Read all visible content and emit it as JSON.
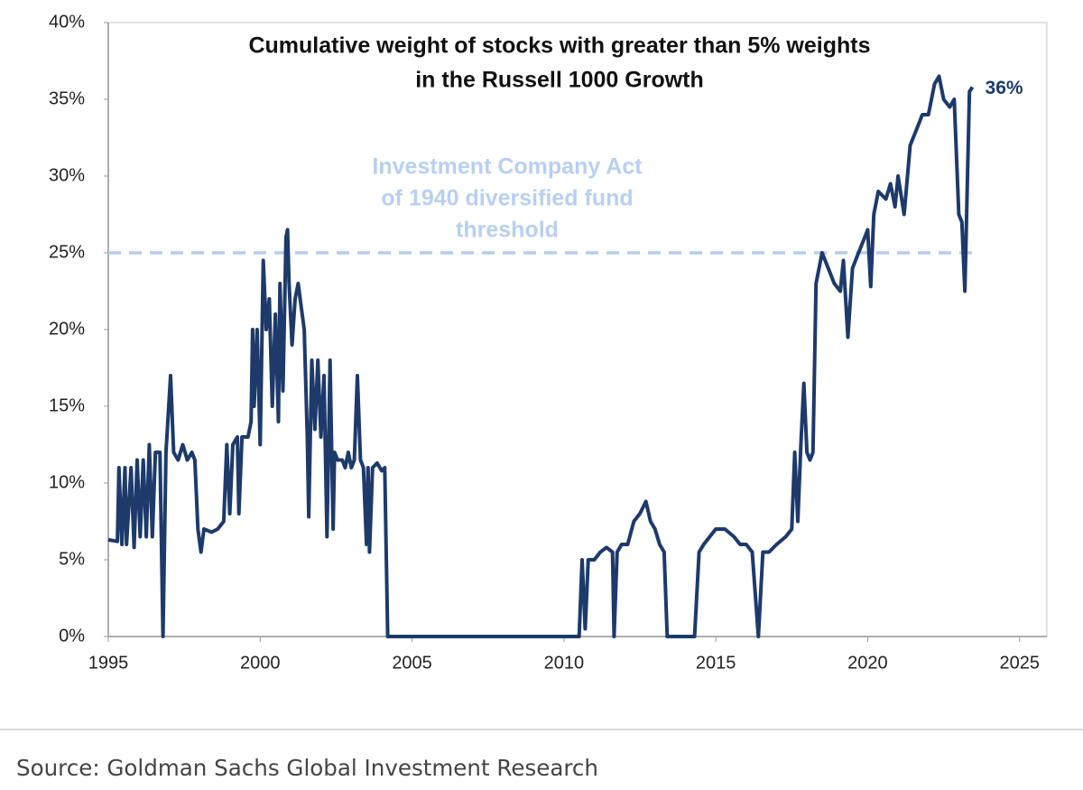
{
  "chart_data": {
    "type": "line",
    "title": [
      "Cumulative weight of stocks with greater than 5% weights",
      "in the Russell 1000 Growth"
    ],
    "x": [
      1995.0,
      1995.3,
      1995.35,
      1995.45,
      1995.55,
      1995.6,
      1995.75,
      1995.85,
      1995.95,
      1996.05,
      1996.15,
      1996.25,
      1996.35,
      1996.45,
      1996.55,
      1996.7,
      1996.8,
      1996.9,
      1997.05,
      1997.15,
      1997.3,
      1997.45,
      1997.6,
      1997.75,
      1997.85,
      1997.95,
      1998.05,
      1998.15,
      1998.4,
      1998.6,
      1998.8,
      1998.9,
      1999.0,
      1999.1,
      1999.25,
      1999.3,
      1999.4,
      1999.6,
      1999.7,
      1999.75,
      1999.8,
      1999.9,
      2000.0,
      2000.1,
      2000.2,
      2000.3,
      2000.4,
      2000.5,
      2000.6,
      2000.65,
      2000.75,
      2000.85,
      2000.9,
      2000.95,
      2001.05,
      2001.15,
      2001.25,
      2001.35,
      2001.45,
      2001.55,
      2001.6,
      2001.7,
      2001.8,
      2001.9,
      2002.0,
      2002.1,
      2002.2,
      2002.3,
      2002.4,
      2002.45,
      2002.55,
      2002.7,
      2002.8,
      2002.9,
      2003.0,
      2003.1,
      2003.2,
      2003.3,
      2003.4,
      2003.5,
      2003.55,
      2003.6,
      2003.7,
      2003.85,
      2004.0,
      2004.1,
      2004.2,
      2010.5,
      2010.6,
      2010.7,
      2010.8,
      2011.0,
      2011.2,
      2011.4,
      2011.6,
      2011.65,
      2011.75,
      2011.9,
      2012.1,
      2012.3,
      2012.5,
      2012.7,
      2012.85,
      2013.0,
      2013.15,
      2013.3,
      2013.4,
      2014.3,
      2014.45,
      2014.6,
      2014.8,
      2015.0,
      2015.3,
      2015.6,
      2015.8,
      2016.0,
      2016.2,
      2016.4,
      2016.55,
      2016.75,
      2017.0,
      2017.3,
      2017.5,
      2017.6,
      2017.7,
      2017.8,
      2017.9,
      2018.0,
      2018.1,
      2018.2,
      2018.3,
      2018.5,
      2018.7,
      2018.9,
      2019.1,
      2019.2,
      2019.35,
      2019.5,
      2019.7,
      2019.9,
      2020.0,
      2020.1,
      2020.2,
      2020.35,
      2020.6,
      2020.75,
      2020.9,
      2021.0,
      2021.2,
      2021.4,
      2021.6,
      2021.8,
      2022.0,
      2022.2,
      2022.35,
      2022.5,
      2022.7,
      2022.85,
      2023.0,
      2023.1,
      2023.2,
      2023.35,
      2023.45
    ],
    "series": [
      {
        "name": "Cumulative weight",
        "color": "#1d3a6b",
        "values": [
          6.3,
          6.2,
          11,
          6,
          11,
          6,
          11,
          5.8,
          11.5,
          6.5,
          11.5,
          6.5,
          12.5,
          6.5,
          12,
          12,
          0,
          12,
          17,
          12,
          11.5,
          12.5,
          11.5,
          12,
          11.5,
          7,
          5.5,
          7,
          6.8,
          7,
          7.5,
          12.5,
          8,
          12.5,
          13,
          8,
          13,
          13,
          14,
          20,
          15,
          20,
          12.5,
          24.5,
          20,
          22,
          15,
          21,
          14,
          23,
          16,
          26,
          26.5,
          23,
          19,
          22,
          23,
          21.5,
          20,
          13,
          7.8,
          18,
          13.5,
          18,
          13,
          17,
          6.5,
          18,
          7,
          12,
          11.5,
          11.5,
          11,
          12,
          11,
          11.5,
          17,
          11.5,
          11,
          6,
          11,
          5.5,
          11,
          11.3,
          10.8,
          11,
          0,
          0,
          5,
          0.5,
          5,
          5,
          5.5,
          5.8,
          5.5,
          0,
          5.5,
          6,
          6,
          7.5,
          8,
          8.8,
          7.5,
          7,
          6,
          5.5,
          0,
          0,
          5.5,
          6,
          6.5,
          7,
          7,
          6.5,
          6,
          6,
          5.5,
          0,
          5.5,
          5.5,
          6,
          6.5,
          7,
          12,
          7.5,
          12.5,
          16.5,
          12,
          11.5,
          12,
          23,
          25,
          24,
          23,
          22.5,
          24.5,
          19.5,
          24,
          25,
          26,
          26.5,
          22.8,
          27.5,
          29,
          28.5,
          29.5,
          28,
          30,
          27.5,
          32,
          33,
          34,
          34,
          36,
          36.5,
          35,
          34.5,
          35,
          27.5,
          27,
          22.5,
          35.5,
          35.8
        ]
      }
    ],
    "end_label": "36%",
    "threshold": {
      "value": 25,
      "color": "#b4cdef",
      "label": [
        "Investment Company Act",
        "of 1940 diversified fund",
        "threshold"
      ]
    },
    "xlim": [
      1995,
      2025.9
    ],
    "xticks": [
      1995,
      2000,
      2005,
      2010,
      2015,
      2020,
      2025
    ],
    "ylim": [
      0,
      40
    ],
    "yticks": [
      {
        "value": 0,
        "label": "0%"
      },
      {
        "value": 5,
        "label": "5%"
      },
      {
        "value": 10,
        "label": "10%"
      },
      {
        "value": 15,
        "label": "15%"
      },
      {
        "value": 20,
        "label": "20%"
      },
      {
        "value": 25,
        "label": "25%"
      },
      {
        "value": 30,
        "label": "30%"
      },
      {
        "value": 35,
        "label": "35%"
      },
      {
        "value": 40,
        "label": "40%"
      }
    ],
    "source": "Source: Goldman Sachs Global Investment Research"
  }
}
